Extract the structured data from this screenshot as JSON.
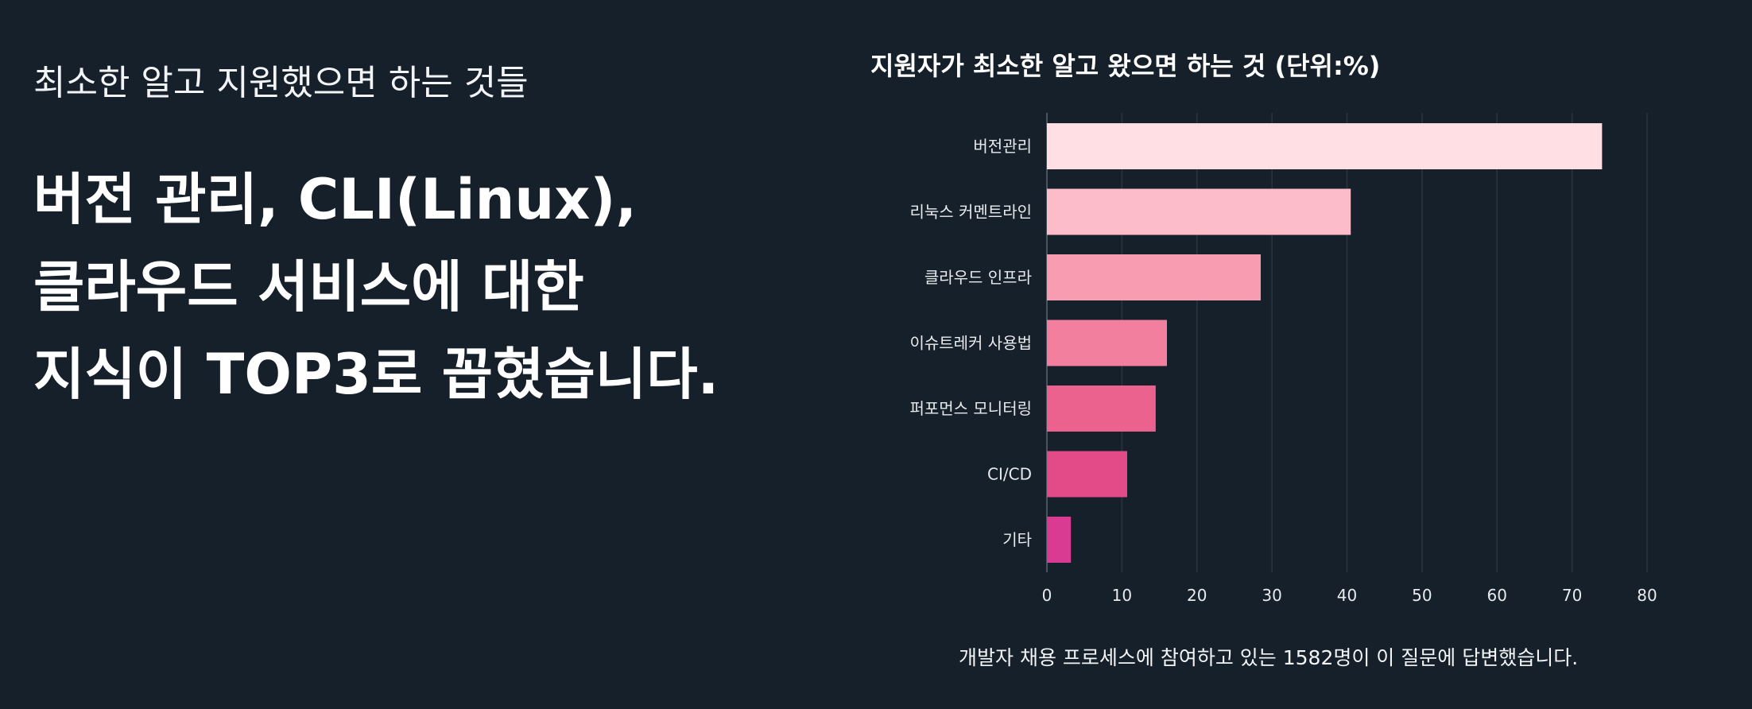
{
  "left": {
    "subtitle": "최소한 알고 지원했으면 하는 것들",
    "headline_lines": [
      "버전 관리, CLI(Linux),",
      "클라우드 서비스에 대한",
      "지식이 TOP3로 꼽혔습니다."
    ]
  },
  "chart_data": {
    "type": "bar",
    "orientation": "horizontal",
    "title": "지원자가 최소한 알고 왔으면 하는 것 (단위:%)",
    "categories": [
      "버전관리",
      "리눅스 커멘트라인",
      "클라우드 인프라",
      "이슈트레커 사용법",
      "퍼포먼스 모니터링",
      "CI/CD",
      "기타"
    ],
    "values": [
      74,
      40.5,
      28.5,
      16,
      14.5,
      10.7,
      3.2
    ],
    "colors": [
      "#ffdfe4",
      "#fdbcca",
      "#f89cb2",
      "#f37f9e",
      "#ec628e",
      "#e34a88",
      "#d93a92"
    ],
    "xlim": [
      0,
      80
    ],
    "xticks": [
      0,
      10,
      20,
      30,
      40,
      50,
      60,
      70,
      80
    ],
    "grid": true,
    "note": "개발자 채용 프로세스에 참여하고 있는 1582명이 이 질문에 답변했습니다."
  }
}
